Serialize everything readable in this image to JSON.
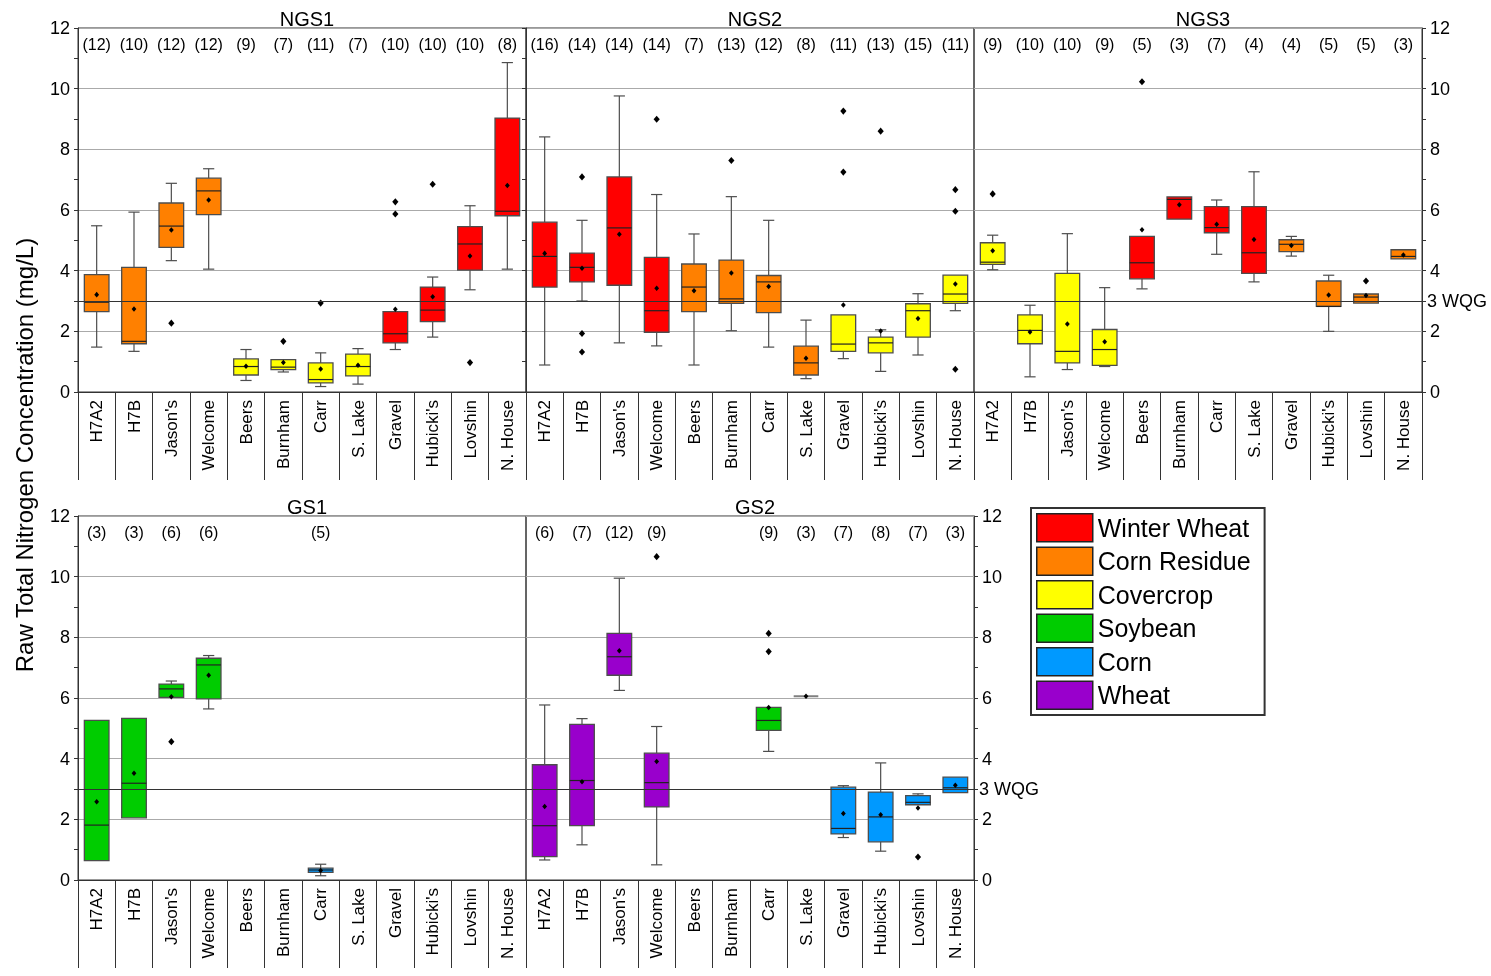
{
  "chart_data": [
    {
      "type": "box",
      "title": "NGS1",
      "ylabel": "Raw Total Nitrogen Concentration (mg/L)",
      "categories": [
        "H7A2",
        "H7B",
        "Jason's",
        "Welcome",
        "Beers",
        "Burnham",
        "Carr",
        "S. Lake",
        "Gravel",
        "Hubicki's",
        "Lovshin",
        "N. House"
      ],
      "series": [
        {
          "color": "#ff0000",
          "boxes": [
            null,
            null,
            null,
            null,
            null,
            null,
            null,
            null,
            {
              "low": 1.4,
              "q1": 1.62,
              "median": 1.92,
              "q3": 2.65,
              "high": 2.65,
              "mean": 2.73,
              "outliers": [
                5.87,
                6.27
              ]
            },
            {
              "low": 1.81,
              "q1": 2.32,
              "median": 2.7,
              "q3": 3.46,
              "high": 3.79,
              "mean": 3.14,
              "outliers": [
                6.85
              ]
            },
            {
              "low": 3.37,
              "q1": 4.02,
              "median": 4.88,
              "q3": 5.45,
              "high": 6.14,
              "mean": 4.48,
              "outliers": [
                0.97
              ]
            },
            {
              "low": 4.05,
              "q1": 5.81,
              "median": 5.96,
              "q3": 9.03,
              "high": 10.86,
              "mean": 6.81
            }
          ]
        },
        {
          "color": "#ff8000",
          "boxes": [
            {
              "low": 1.48,
              "q1": 2.65,
              "median": 2.96,
              "q3": 3.87,
              "high": 5.48,
              "mean": 3.21
            },
            {
              "low": 1.34,
              "q1": 1.59,
              "median": 1.67,
              "q3": 4.11,
              "high": 5.93,
              "mean": 2.74
            },
            {
              "low": 4.33,
              "q1": 4.77,
              "median": 5.47,
              "q3": 6.23,
              "high": 6.88,
              "mean": 5.34,
              "outliers": [
                2.27
              ]
            },
            {
              "low": 4.05,
              "q1": 5.85,
              "median": 6.63,
              "q3": 7.05,
              "high": 7.36,
              "mean": 6.33
            },
            null,
            null,
            null,
            null,
            null,
            null,
            null,
            null
          ]
        },
        {
          "color": "#ffff00",
          "boxes": [
            null,
            null,
            null,
            null,
            {
              "low": 0.38,
              "q1": 0.56,
              "median": 0.84,
              "q3": 1.09,
              "high": 1.4,
              "mean": 0.85
            },
            {
              "low": 0.66,
              "q1": 0.74,
              "median": 0.82,
              "q3": 1.07,
              "high": 1.07,
              "mean": 0.97,
              "outliers": [
                1.67
              ]
            },
            {
              "low": 0.18,
              "q1": 0.3,
              "median": 0.41,
              "q3": 0.96,
              "high": 1.29,
              "mean": 0.76,
              "outliers": [
                2.93
              ]
            },
            {
              "low": 0.26,
              "q1": 0.53,
              "median": 0.84,
              "q3": 1.25,
              "high": 1.43,
              "mean": 0.88
            },
            null,
            null,
            null,
            null
          ]
        }
      ],
      "ylim": [
        0,
        12
      ],
      "yticks": [
        0,
        {
          "value": 1,
          "label": null
        },
        2,
        {
          "value": 3,
          "label": null
        },
        4,
        {
          "value": 5,
          "label": null
        },
        6,
        {
          "value": 7,
          "label": null
        },
        8,
        {
          "value": 9,
          "label": null
        },
        10,
        {
          "value": 11,
          "label": null
        },
        12
      ],
      "grid": "y",
      "marker": "diamond",
      "ref_lines": [
        {
          "axis": "y",
          "value": 3
        }
      ],
      "annotations": [
        "(12)",
        "(10)",
        "(12)",
        "(12)",
        "(9)",
        "(7)",
        "(11)",
        "(7)",
        "(10)",
        "(10)",
        "(10)",
        "(8)"
      ]
    },
    {
      "type": "box",
      "title": "NGS2",
      "categories": [
        "H7A2",
        "H7B",
        "Jason's",
        "Welcome",
        "Beers",
        "Burnham",
        "Carr",
        "S. Lake",
        "Gravel",
        "Hubicki's",
        "Lovshin",
        "N. House"
      ],
      "series": [
        {
          "color": "#ff0000",
          "boxes": [
            {
              "low": 0.89,
              "q1": 3.46,
              "median": 4.47,
              "q3": 5.6,
              "high": 8.41,
              "mean": 4.57
            },
            {
              "low": 3.0,
              "q1": 3.63,
              "median": 4.11,
              "q3": 4.58,
              "high": 5.66,
              "mean": 4.08,
              "outliers": [
                1.32,
                1.93,
                7.09
              ]
            },
            {
              "low": 1.62,
              "q1": 3.52,
              "median": 5.41,
              "q3": 7.09,
              "high": 9.76,
              "mean": 5.2
            },
            {
              "low": 1.52,
              "q1": 1.97,
              "median": 2.68,
              "q3": 4.44,
              "high": 6.51,
              "mean": 3.42,
              "outliers": [
                8.99
              ]
            },
            null,
            null,
            null,
            null,
            null,
            null,
            null,
            null
          ]
        },
        {
          "color": "#ff8000",
          "boxes": [
            null,
            null,
            null,
            null,
            {
              "low": 0.89,
              "q1": 2.65,
              "median": 3.46,
              "q3": 4.22,
              "high": 5.21,
              "mean": 3.34
            },
            {
              "low": 2.02,
              "q1": 2.92,
              "median": 3.07,
              "q3": 4.35,
              "high": 6.44,
              "mean": 3.92,
              "outliers": [
                7.63
              ]
            },
            {
              "low": 1.48,
              "q1": 2.62,
              "median": 3.63,
              "q3": 3.84,
              "high": 5.66,
              "mean": 3.48
            },
            {
              "low": 0.44,
              "q1": 0.56,
              "median": 0.96,
              "q3": 1.51,
              "high": 2.37,
              "mean": 1.11
            },
            null,
            null,
            null,
            null
          ]
        },
        {
          "color": "#ffff00",
          "boxes": [
            null,
            null,
            null,
            null,
            null,
            null,
            null,
            null,
            {
              "low": 1.1,
              "q1": 1.34,
              "median": 1.58,
              "q3": 2.54,
              "high": 2.54,
              "mean": 2.87,
              "outliers": [
                7.25,
                9.26
              ]
            },
            {
              "low": 0.68,
              "q1": 1.29,
              "median": 1.62,
              "q3": 1.81,
              "high": 2.05,
              "mean": 2.01,
              "outliers": [
                8.6
              ]
            },
            {
              "low": 1.22,
              "q1": 1.81,
              "median": 2.68,
              "q3": 2.91,
              "high": 3.24,
              "mean": 2.42
            },
            {
              "low": 2.68,
              "q1": 2.92,
              "median": 3.23,
              "q3": 3.85,
              "high": 3.85,
              "mean": 3.56,
              "outliers": [
                0.75,
                5.96,
                6.67
              ]
            }
          ]
        }
      ],
      "ylim": [
        0,
        12
      ],
      "yticks": [
        0,
        {
          "value": 1,
          "label": null
        },
        2,
        {
          "value": 3,
          "label": null
        },
        4,
        {
          "value": 5,
          "label": null
        },
        6,
        {
          "value": 7,
          "label": null
        },
        8,
        {
          "value": 9,
          "label": null
        },
        10,
        {
          "value": 11,
          "label": null
        },
        12
      ],
      "tick_labels": "x",
      "grid": "y",
      "marker": "diamond",
      "ref_lines": [
        {
          "axis": "y",
          "value": 3
        }
      ],
      "annotations": [
        "(16)",
        "(14)",
        "(14)",
        "(14)",
        "(7)",
        "(13)",
        "(12)",
        "(8)",
        "(11)",
        "(13)",
        "(15)",
        "(11)"
      ]
    },
    {
      "type": "box",
      "title": "NGS3",
      "categories": [
        "H7A2",
        "H7B",
        "Jason's",
        "Welcome",
        "Beers",
        "Burnham",
        "Carr",
        "S. Lake",
        "Gravel",
        "Hubicki's",
        "Lovshin",
        "N. House"
      ],
      "series": [
        {
          "color": "#ff0000",
          "boxes": [
            null,
            null,
            null,
            null,
            {
              "low": 3.4,
              "q1": 3.73,
              "median": 4.26,
              "q3": 5.13,
              "high": 5.13,
              "mean": 5.35,
              "outliers": [
                10.23
              ]
            },
            {
              "low": 5.7,
              "q1": 5.7,
              "median": 6.35,
              "q3": 6.43,
              "high": 6.43,
              "mean": 6.17
            },
            {
              "low": 4.54,
              "q1": 5.25,
              "median": 5.42,
              "q3": 6.11,
              "high": 6.33,
              "mean": 5.53
            },
            {
              "low": 3.63,
              "q1": 3.91,
              "median": 4.59,
              "q3": 6.11,
              "high": 7.26,
              "mean": 5.03
            },
            null,
            null,
            null,
            null
          ]
        },
        {
          "color": "#ff8000",
          "boxes": [
            null,
            null,
            null,
            null,
            null,
            null,
            null,
            null,
            {
              "low": 4.48,
              "q1": 4.63,
              "median": 4.87,
              "q3": 5.02,
              "high": 5.13,
              "mean": 4.83
            },
            {
              "low": 2.0,
              "q1": 2.82,
              "median": 2.82,
              "q3": 3.66,
              "high": 3.85,
              "mean": 3.2
            },
            {
              "low": 2.93,
              "q1": 2.93,
              "median": 3.13,
              "q3": 3.23,
              "high": 3.23,
              "mean": 3.18,
              "outliers": [
                3.66
              ]
            },
            {
              "low": 4.39,
              "q1": 4.39,
              "median": 4.47,
              "q3": 4.69,
              "high": 4.69,
              "mean": 4.52
            }
          ]
        },
        {
          "color": "#ffff00",
          "boxes": [
            {
              "low": 4.03,
              "q1": 4.21,
              "median": 4.28,
              "q3": 4.92,
              "high": 5.17,
              "mean": 4.66,
              "outliers": [
                6.53
              ]
            },
            {
              "low": 0.5,
              "q1": 1.59,
              "median": 2.03,
              "q3": 2.54,
              "high": 2.86,
              "mean": 1.98
            },
            {
              "low": 0.74,
              "q1": 0.96,
              "median": 1.34,
              "q3": 3.91,
              "high": 5.22,
              "mean": 2.24
            },
            {
              "low": 0.84,
              "q1": 0.88,
              "median": 1.4,
              "q3": 2.06,
              "high": 3.44,
              "mean": 1.66
            },
            null,
            null,
            null,
            null,
            null,
            null,
            null,
            null
          ]
        }
      ],
      "ylim": [
        0,
        12
      ],
      "yticks": [
        0,
        {
          "value": 1,
          "label": null
        },
        2,
        {
          "value": 3,
          "label": null
        },
        4,
        {
          "value": 5,
          "label": null
        },
        6,
        {
          "value": 7,
          "label": null
        },
        8,
        {
          "value": 9,
          "label": null
        },
        10,
        {
          "value": 11,
          "label": null
        },
        12
      ],
      "grid": "y",
      "marker": "diamond",
      "ref_lines": [
        {
          "axis": "y",
          "value": 3,
          "label": "3 WQG"
        }
      ],
      "annotations": [
        "(9)",
        "(10)",
        "(10)",
        "(9)",
        "(5)",
        "(3)",
        "(7)",
        "(4)",
        "(4)",
        "(5)",
        "(5)",
        "(3)"
      ]
    },
    {
      "type": "box",
      "title": "GS1",
      "categories": [
        "H7A2",
        "H7B",
        "Jason's",
        "Welcome",
        "Beers",
        "Burnham",
        "Carr",
        "S. Lake",
        "Gravel",
        "Hubicki's",
        "Lovshin",
        "N. House"
      ],
      "series": [
        {
          "color": "#00cc00",
          "boxes": [
            {
              "low": 0.64,
              "q1": 0.64,
              "median": 1.81,
              "q3": 5.26,
              "high": 5.26,
              "mean": 2.58
            },
            {
              "low": 2.05,
              "q1": 2.05,
              "median": 3.19,
              "q3": 5.33,
              "high": 5.33,
              "mean": 3.52
            },
            {
              "low": 6.02,
              "q1": 6.02,
              "median": 6.3,
              "q3": 6.46,
              "high": 6.56,
              "mean": 6.04,
              "outliers": [
                4.56
              ]
            },
            {
              "low": 5.64,
              "q1": 5.97,
              "median": 7.09,
              "q3": 7.31,
              "high": 7.4,
              "mean": 6.75
            },
            null,
            null,
            null,
            null,
            null,
            null,
            null,
            null
          ]
        },
        {
          "color": "#0099ff",
          "boxes": [
            null,
            null,
            null,
            null,
            null,
            null,
            {
              "low": 0.14,
              "q1": 0.25,
              "median": 0.33,
              "q3": 0.39,
              "high": 0.52,
              "mean": 0.31
            },
            null,
            null,
            null,
            null,
            null
          ]
        }
      ],
      "ylim": [
        0,
        12
      ],
      "yticks": [
        0,
        {
          "value": 1,
          "label": null
        },
        2,
        {
          "value": 3,
          "label": null
        },
        4,
        {
          "value": 5,
          "label": null
        },
        6,
        {
          "value": 7,
          "label": null
        },
        8,
        {
          "value": 9,
          "label": null
        },
        10,
        {
          "value": 11,
          "label": null
        },
        12
      ],
      "grid": "y",
      "marker": "diamond",
      "ref_lines": [
        {
          "axis": "y",
          "value": 3
        }
      ],
      "annotations": [
        "(3)",
        "(3)",
        "(6)",
        "(6)",
        "(5)"
      ]
    },
    {
      "type": "box",
      "title": "GS2",
      "categories": [
        "H7A2",
        "H7B",
        "Jason's",
        "Welcome",
        "Beers",
        "Burnham",
        "Carr",
        "S. Lake",
        "Gravel",
        "Hubicki's",
        "Lovshin",
        "N. House"
      ],
      "series": [
        {
          "name": "Winter Wheat",
          "color": "#ff0000",
          "boxes": [
            null,
            null,
            null,
            null,
            null,
            null,
            null,
            null,
            null,
            null,
            null,
            null
          ]
        },
        {
          "name": "Corn Residue",
          "color": "#ff8000",
          "boxes": [
            null,
            null,
            null,
            null,
            null,
            null,
            null,
            null,
            null,
            null,
            null,
            null
          ]
        },
        {
          "name": "Covercrop",
          "color": "#ffff00",
          "boxes": [
            null,
            null,
            null,
            null,
            null,
            null,
            null,
            null,
            null,
            null,
            null,
            null
          ]
        },
        {
          "name": "Soybean",
          "color": "#00cc00",
          "boxes": [
            null,
            null,
            null,
            null,
            null,
            null,
            {
              "low": 4.24,
              "q1": 4.93,
              "median": 5.26,
              "q3": 5.69,
              "high": 5.69,
              "mean": 5.69,
              "outliers": [
                7.53,
                8.13
              ]
            },
            null,
            null,
            null,
            null,
            null
          ]
        },
        {
          "name": "Corn",
          "color": "#0099ff",
          "boxes": [
            null,
            null,
            null,
            null,
            null,
            null,
            null,
            null,
            {
              "low": 1.4,
              "q1": 1.52,
              "median": 1.7,
              "q3": 3.06,
              "high": 3.11,
              "mean": 2.19
            },
            {
              "low": 0.95,
              "q1": 1.26,
              "median": 2.08,
              "q3": 2.9,
              "high": 3.86,
              "mean": 2.15
            },
            {
              "low": 2.48,
              "q1": 2.48,
              "median": 2.56,
              "q3": 2.78,
              "high": 2.84,
              "mean": 2.37,
              "outliers": [
                0.76
              ]
            },
            {
              "low": 2.88,
              "q1": 2.88,
              "median": 3.04,
              "q3": 3.39,
              "high": 3.39,
              "mean": 3.12
            }
          ]
        },
        {
          "name": "Wheat",
          "color": "#9900cc",
          "boxes": [
            {
              "low": 0.66,
              "q1": 0.77,
              "median": 1.79,
              "q3": 3.8,
              "high": 5.77,
              "mean": 2.42
            },
            {
              "low": 1.16,
              "q1": 1.79,
              "median": 3.28,
              "q3": 5.13,
              "high": 5.32,
              "mean": 3.24
            },
            {
              "low": 6.25,
              "q1": 6.75,
              "median": 7.36,
              "q3": 8.13,
              "high": 9.95,
              "mean": 7.56
            },
            {
              "low": 0.5,
              "q1": 2.41,
              "median": 3.21,
              "q3": 4.18,
              "high": 5.06,
              "mean": 3.91,
              "outliers": [
                10.66
              ]
            },
            null,
            null,
            null,
            null,
            null,
            null,
            null,
            null
          ]
        },
        {
          "color": "#808080",
          "boxes": [
            null,
            null,
            null,
            null,
            null,
            null,
            null,
            {
              "low": 6.06,
              "q1": 6.06,
              "median": 6.06,
              "q3": 6.06,
              "high": 6.06,
              "mean": 6.06
            },
            null,
            null,
            null,
            null
          ]
        }
      ],
      "ylim": [
        0,
        12
      ],
      "yticks": [
        0,
        {
          "value": 1,
          "label": null
        },
        2,
        {
          "value": 3,
          "label": null
        },
        4,
        {
          "value": 5,
          "label": null
        },
        6,
        {
          "value": 7,
          "label": null
        },
        8,
        {
          "value": 9,
          "label": null
        },
        10,
        {
          "value": 11,
          "label": null
        },
        12
      ],
      "grid": "y",
      "marker": "diamond",
      "legend": "right",
      "ref_lines": [
        {
          "axis": "y",
          "value": 3,
          "label": "3 WQG"
        }
      ],
      "annotations": [
        "(6)",
        "(7)",
        "(12)",
        "(9)",
        "(9)",
        "(3)",
        "(7)",
        "(8)",
        "(7)",
        "(3)"
      ]
    }
  ]
}
